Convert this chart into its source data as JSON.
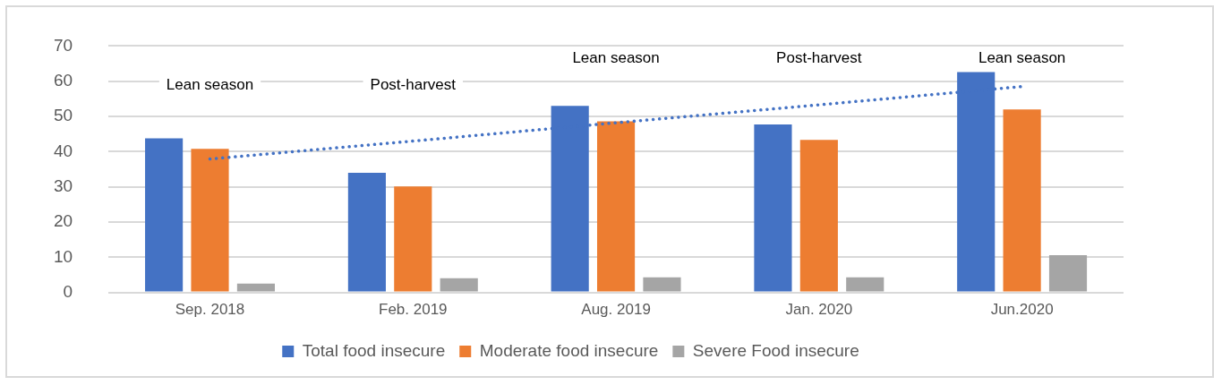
{
  "chart_data": {
    "type": "bar",
    "categories": [
      "Sep. 2018",
      "Feb. 2019",
      "Aug. 2019",
      "Jan. 2020",
      "Jun.2020"
    ],
    "series": [
      {
        "name": "Total food insecure",
        "color": "#4472c4",
        "values": [
          43.8,
          34.0,
          53.0,
          47.7,
          62.6
        ]
      },
      {
        "name": "Moderate food insecure",
        "color": "#ed7d31",
        "values": [
          40.8,
          30.1,
          48.6,
          43.3,
          52.0
        ]
      },
      {
        "name": "Severe Food insecure",
        "color": "#a5a5a5",
        "values": [
          2.5,
          4.0,
          4.3,
          4.3,
          10.6
        ]
      },
      {
        "type": "line",
        "color": "#4472c4",
        "line_style": "dotted",
        "values": [
          37.9,
          43.0,
          48.2,
          53.3,
          58.5
        ]
      }
    ],
    "ylim": [
      0,
      70
    ],
    "yticks": [
      0,
      10,
      20,
      30,
      40,
      50,
      60,
      70
    ],
    "grid": "y",
    "legend": "bottom",
    "annotations": [
      "Lean season",
      "Post-harvest",
      "Lean season",
      "Post-harvest",
      "Lean season"
    ]
  }
}
